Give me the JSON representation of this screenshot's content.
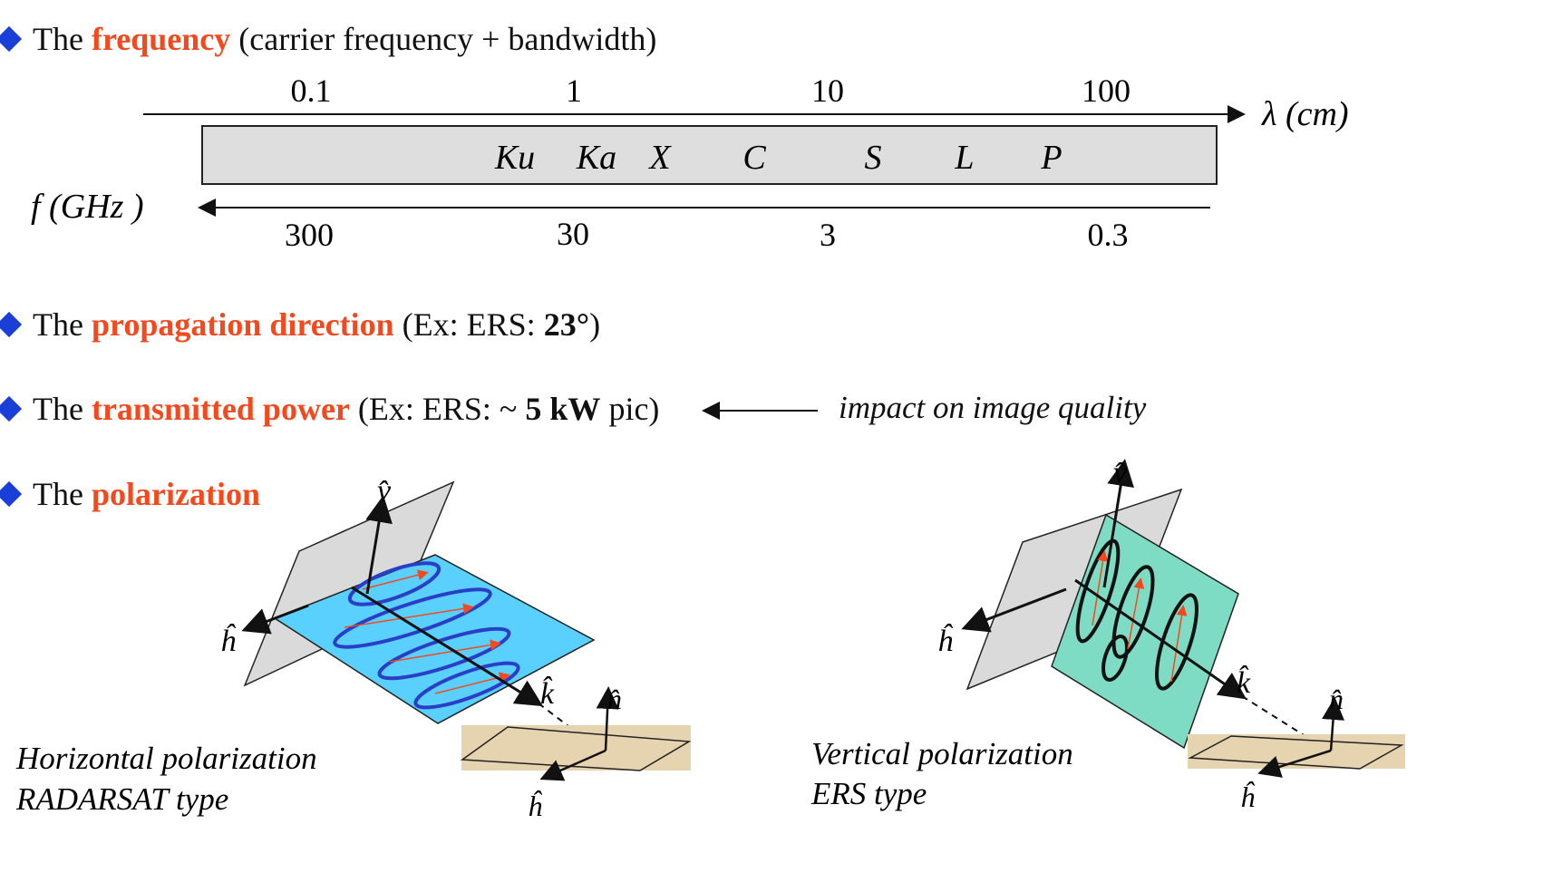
{
  "bullets": {
    "frequency": {
      "prefix": "The",
      "keyword": "frequency",
      "suffix": "(carrier frequency + bandwidth)"
    },
    "propagation": {
      "prefix": "The",
      "keyword": "propagation direction",
      "ex": "(Ex:  ERS: ",
      "value": "23°",
      "close": ")"
    },
    "power": {
      "prefix": "The",
      "keyword": "transmitted power",
      "ex": "(Ex:  ERS:  ~",
      "value": "5 kW",
      "rest": "pic)",
      "note": "impact on image quality"
    },
    "polarization": {
      "prefix": "The",
      "keyword": "polarization"
    }
  },
  "spectrum": {
    "wavelength_ticks": [
      "0.1",
      "1",
      "10",
      "100"
    ],
    "wavelength_label": "λ (cm)",
    "frequency_ticks": [
      "300",
      "30",
      "3",
      "0.3"
    ],
    "frequency_label": "f  (GHz )",
    "bands": [
      "Ku",
      "Ka",
      "X",
      "C",
      "S",
      "L",
      "P"
    ]
  },
  "polarization": {
    "horizontal": {
      "caption1": "Horizontal polarization",
      "caption2": "RADARSAT type"
    },
    "vertical": {
      "caption1": "Vertical polarization",
      "caption2": "ERS type"
    },
    "axis_v": "v̂",
    "axis_h": "ĥ",
    "axis_k": "k̂",
    "axis_n": "n̂"
  },
  "colors": {
    "accent": "#f24a1e",
    "bullet": "#1a3fd6",
    "h_plane": "#5ad0ff",
    "v_plane": "#7fdcc4",
    "ground": "#e6d3b0",
    "gray_plane": "#d9d9d9",
    "wave_h": "#2a3fc8",
    "wave_v": "#111111"
  }
}
